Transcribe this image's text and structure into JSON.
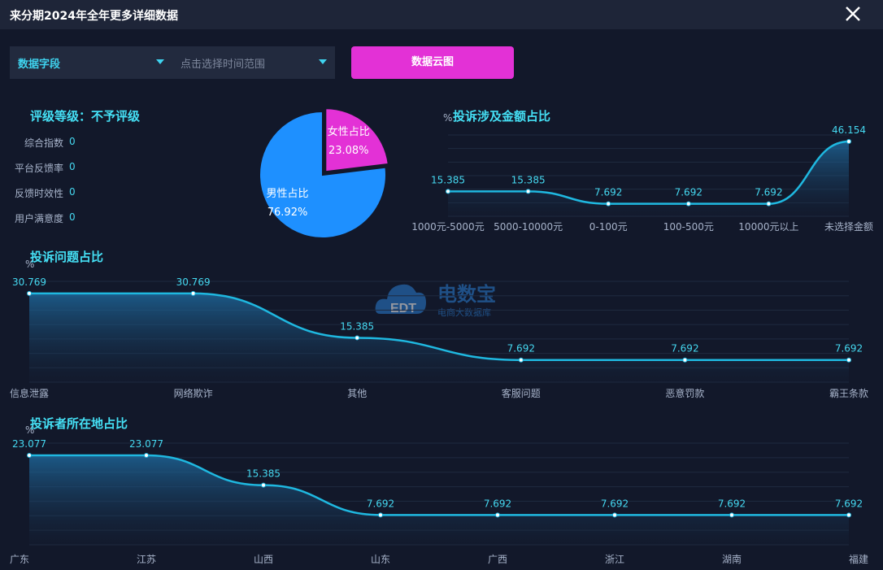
{
  "window": {
    "title": "来分期2024年全年更多详细数据"
  },
  "controls": {
    "field_select": "数据字段",
    "time_placeholder": "点击选择时间范围",
    "cloud_button": "数据云图"
  },
  "rating": {
    "title": "评级等级：不予评级",
    "metrics": [
      {
        "label": "综合指数",
        "value": "0"
      },
      {
        "label": "平台反馈率",
        "value": "0"
      },
      {
        "label": "反馈时效性",
        "value": "0"
      },
      {
        "label": "用户满意度",
        "value": "0"
      }
    ]
  },
  "logo": {
    "brand": "电数宝",
    "tagline": "电商大数据库",
    "mark": "EDT"
  },
  "colors": {
    "accent": "#45e0f5",
    "line": "#1fb8e0",
    "male": "#1e90ff",
    "female": "#e331d6",
    "button": "#e331d6"
  },
  "chart_data": [
    {
      "id": "gender",
      "type": "pie",
      "title": "",
      "slices": [
        {
          "name": "女性占比",
          "value": 23.08,
          "label": "23.08%",
          "color": "#e331d6"
        },
        {
          "name": "男性占比",
          "value": 76.92,
          "label": "76.92%",
          "color": "#1e90ff"
        }
      ]
    },
    {
      "id": "amount",
      "type": "area",
      "title": "投诉涉及金额占比",
      "ylabel": "%",
      "categories": [
        "1000元-5000元",
        "5000-10000元",
        "0-100元",
        "100-500元",
        "10000元以上",
        "未选择金额"
      ],
      "values": [
        15.385,
        15.385,
        7.692,
        7.692,
        7.692,
        46.154
      ],
      "value_labels": [
        "15.385",
        "15.385",
        "7.692",
        "7.692",
        "7.692",
        "46.154"
      ]
    },
    {
      "id": "issue",
      "type": "area",
      "title": "投诉问题占比",
      "ylabel": "%",
      "categories": [
        "信息泄露",
        "网络欺诈",
        "其他",
        "客服问题",
        "恶意罚款",
        "霸王条款"
      ],
      "values": [
        30.769,
        30.769,
        15.385,
        7.692,
        7.692,
        7.692
      ],
      "value_labels": [
        "30.769",
        "30.769",
        "15.385",
        "7.692",
        "7.692",
        "7.692"
      ]
    },
    {
      "id": "location",
      "type": "area",
      "title": "投诉者所在地占比",
      "ylabel": "%",
      "categories": [
        "广东",
        "江苏",
        "山西",
        "山东",
        "广西",
        "浙江",
        "湖南",
        "福建"
      ],
      "values": [
        23.077,
        23.077,
        15.385,
        7.692,
        7.692,
        7.692,
        7.692,
        7.692
      ],
      "value_labels": [
        "23.077",
        "23.077",
        "15.385",
        "7.692",
        "7.692",
        "7.692",
        "7.692",
        "7.692"
      ]
    }
  ]
}
